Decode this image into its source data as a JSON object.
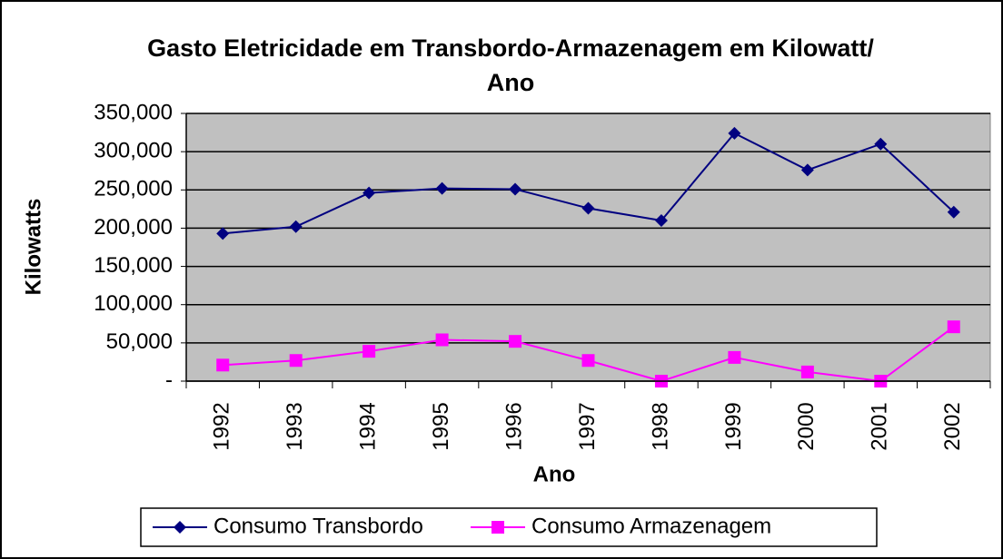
{
  "chart_data": {
    "type": "line",
    "title": "Gasto Eletricidade em Transbordo-Armazenagem em Kilowatt/ Ano",
    "x_label": "Ano",
    "y_label": "Kilowatts",
    "categories": [
      "1992",
      "1993",
      "1994",
      "1995",
      "1996",
      "1997",
      "1998",
      "1999",
      "2000",
      "2001",
      "2002"
    ],
    "series": [
      {
        "name": "Consumo Transbordo",
        "color": "#000080",
        "marker": "diamond",
        "values": [
          193000,
          202000,
          246000,
          252000,
          251000,
          226000,
          210000,
          324000,
          276000,
          310000,
          221000
        ]
      },
      {
        "name": "Consumo Armazenagem",
        "color": "#ff00ff",
        "marker": "square",
        "values": [
          21000,
          27000,
          39000,
          54000,
          52000,
          27000,
          0,
          31000,
          12000,
          0,
          71000
        ]
      }
    ],
    "ylim": [
      0,
      350000
    ],
    "yticks": [
      {
        "value": 0,
        "label": "-"
      },
      {
        "value": 50000,
        "label": "50,000"
      },
      {
        "value": 100000,
        "label": "100,000"
      },
      {
        "value": 150000,
        "label": "150,000"
      },
      {
        "value": 200000,
        "label": "200,000"
      },
      {
        "value": 250000,
        "label": "250,000"
      },
      {
        "value": 300000,
        "label": "300,000"
      },
      {
        "value": 350000,
        "label": "350,000"
      }
    ],
    "grid": true,
    "plot_background": "#c0c0c0",
    "legend": "bottom"
  }
}
